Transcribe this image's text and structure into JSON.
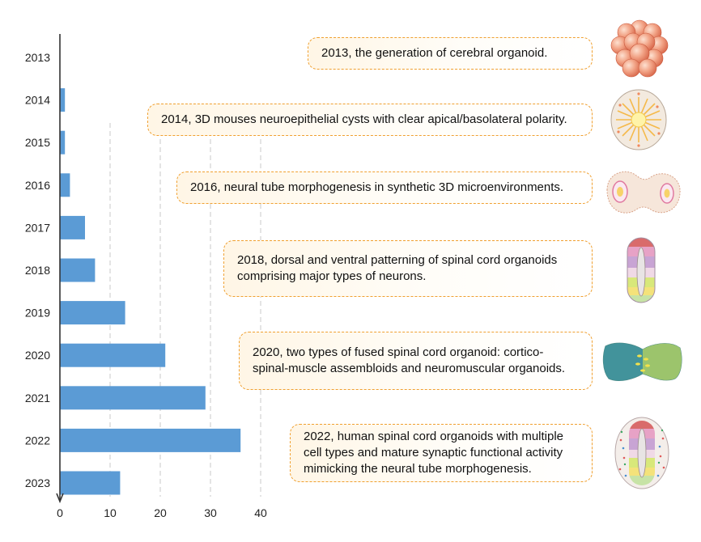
{
  "chart_data": {
    "type": "bar",
    "orientation": "horizontal",
    "categories": [
      "2013",
      "2014",
      "2015",
      "2016",
      "2017",
      "2018",
      "2019",
      "2020",
      "2021",
      "2022",
      "2023"
    ],
    "values": [
      0,
      1,
      1,
      2,
      5,
      7,
      13,
      21,
      29,
      36,
      12
    ],
    "xlim": [
      0,
      40
    ],
    "xticks": [
      0,
      10,
      20,
      30,
      40
    ],
    "grid": "vertical dashed",
    "bar_color": "#5b9bd5",
    "title": "",
    "xlabel": "",
    "ylabel": ""
  },
  "events": [
    {
      "text": "2013, the generation of cerebral organoid.",
      "icon": "cerebral-organoid-cluster-icon"
    },
    {
      "text": "2014, 3D mouses neuroepithelial cysts with clear apical/basolateral polarity.",
      "icon": "neuroepithelial-cyst-icon"
    },
    {
      "text": "2016, neural tube morphogenesis in synthetic 3D microenvironments.",
      "icon": "neural-tube-morphogenesis-icon"
    },
    {
      "text": "2018, dorsal and ventral patterning of spinal cord organoids comprising major types of neurons.",
      "icon": "spinal-cord-patterning-icon"
    },
    {
      "text": "2020, two types of fused spinal cord organoid: cortico-spinal-muscle assembloids and neuromuscular organoids.",
      "icon": "fused-organoid-icon"
    },
    {
      "text": "2022, human spinal cord organoids with multiple cell types and mature synaptic functional activity mimicking the neural tube morphogenesis.",
      "icon": "human-spinal-cord-organoid-icon"
    }
  ],
  "colors": {
    "event_border": "#f0a030",
    "event_fill": "#fff6e6",
    "axis": "#333333",
    "grid": "#c8c8c8"
  }
}
